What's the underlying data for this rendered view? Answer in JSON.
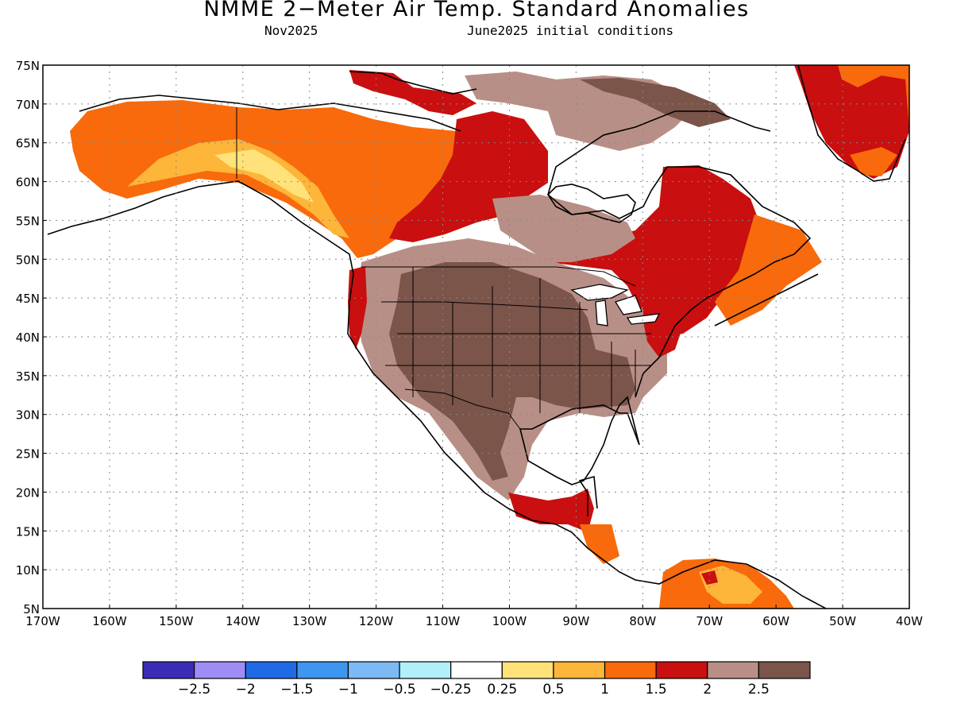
{
  "title": "NMME 2−Meter Air Temp. Standard Anomalies",
  "subtitle_left": "Nov2025",
  "subtitle_right": "June2025 initial conditions",
  "lat_ticks": [
    "75N",
    "70N",
    "65N",
    "60N",
    "55N",
    "50N",
    "45N",
    "40N",
    "35N",
    "30N",
    "25N",
    "20N",
    "15N",
    "10N",
    "5N"
  ],
  "lon_ticks": [
    "170W",
    "160W",
    "150W",
    "140W",
    "130W",
    "120W",
    "110W",
    "100W",
    "90W",
    "80W",
    "70W",
    "60W",
    "50W",
    "40W"
  ],
  "colorbar": {
    "colors": [
      "#3b2cb8",
      "#a08cf5",
      "#1f6be6",
      "#3d96f0",
      "#7bbaf5",
      "#b0f0f8",
      "#ffffff",
      "#ffe27a",
      "#fdb53a",
      "#f86a0b",
      "#c90f0f",
      "#b88f86",
      "#7b544a"
    ],
    "labels": [
      "−2.5",
      "−2",
      "−1.5",
      "−1",
      "−0.5",
      "−0.25",
      "0.25",
      "0.5",
      "1",
      "1.5",
      "2",
      "2.5"
    ]
  }
}
